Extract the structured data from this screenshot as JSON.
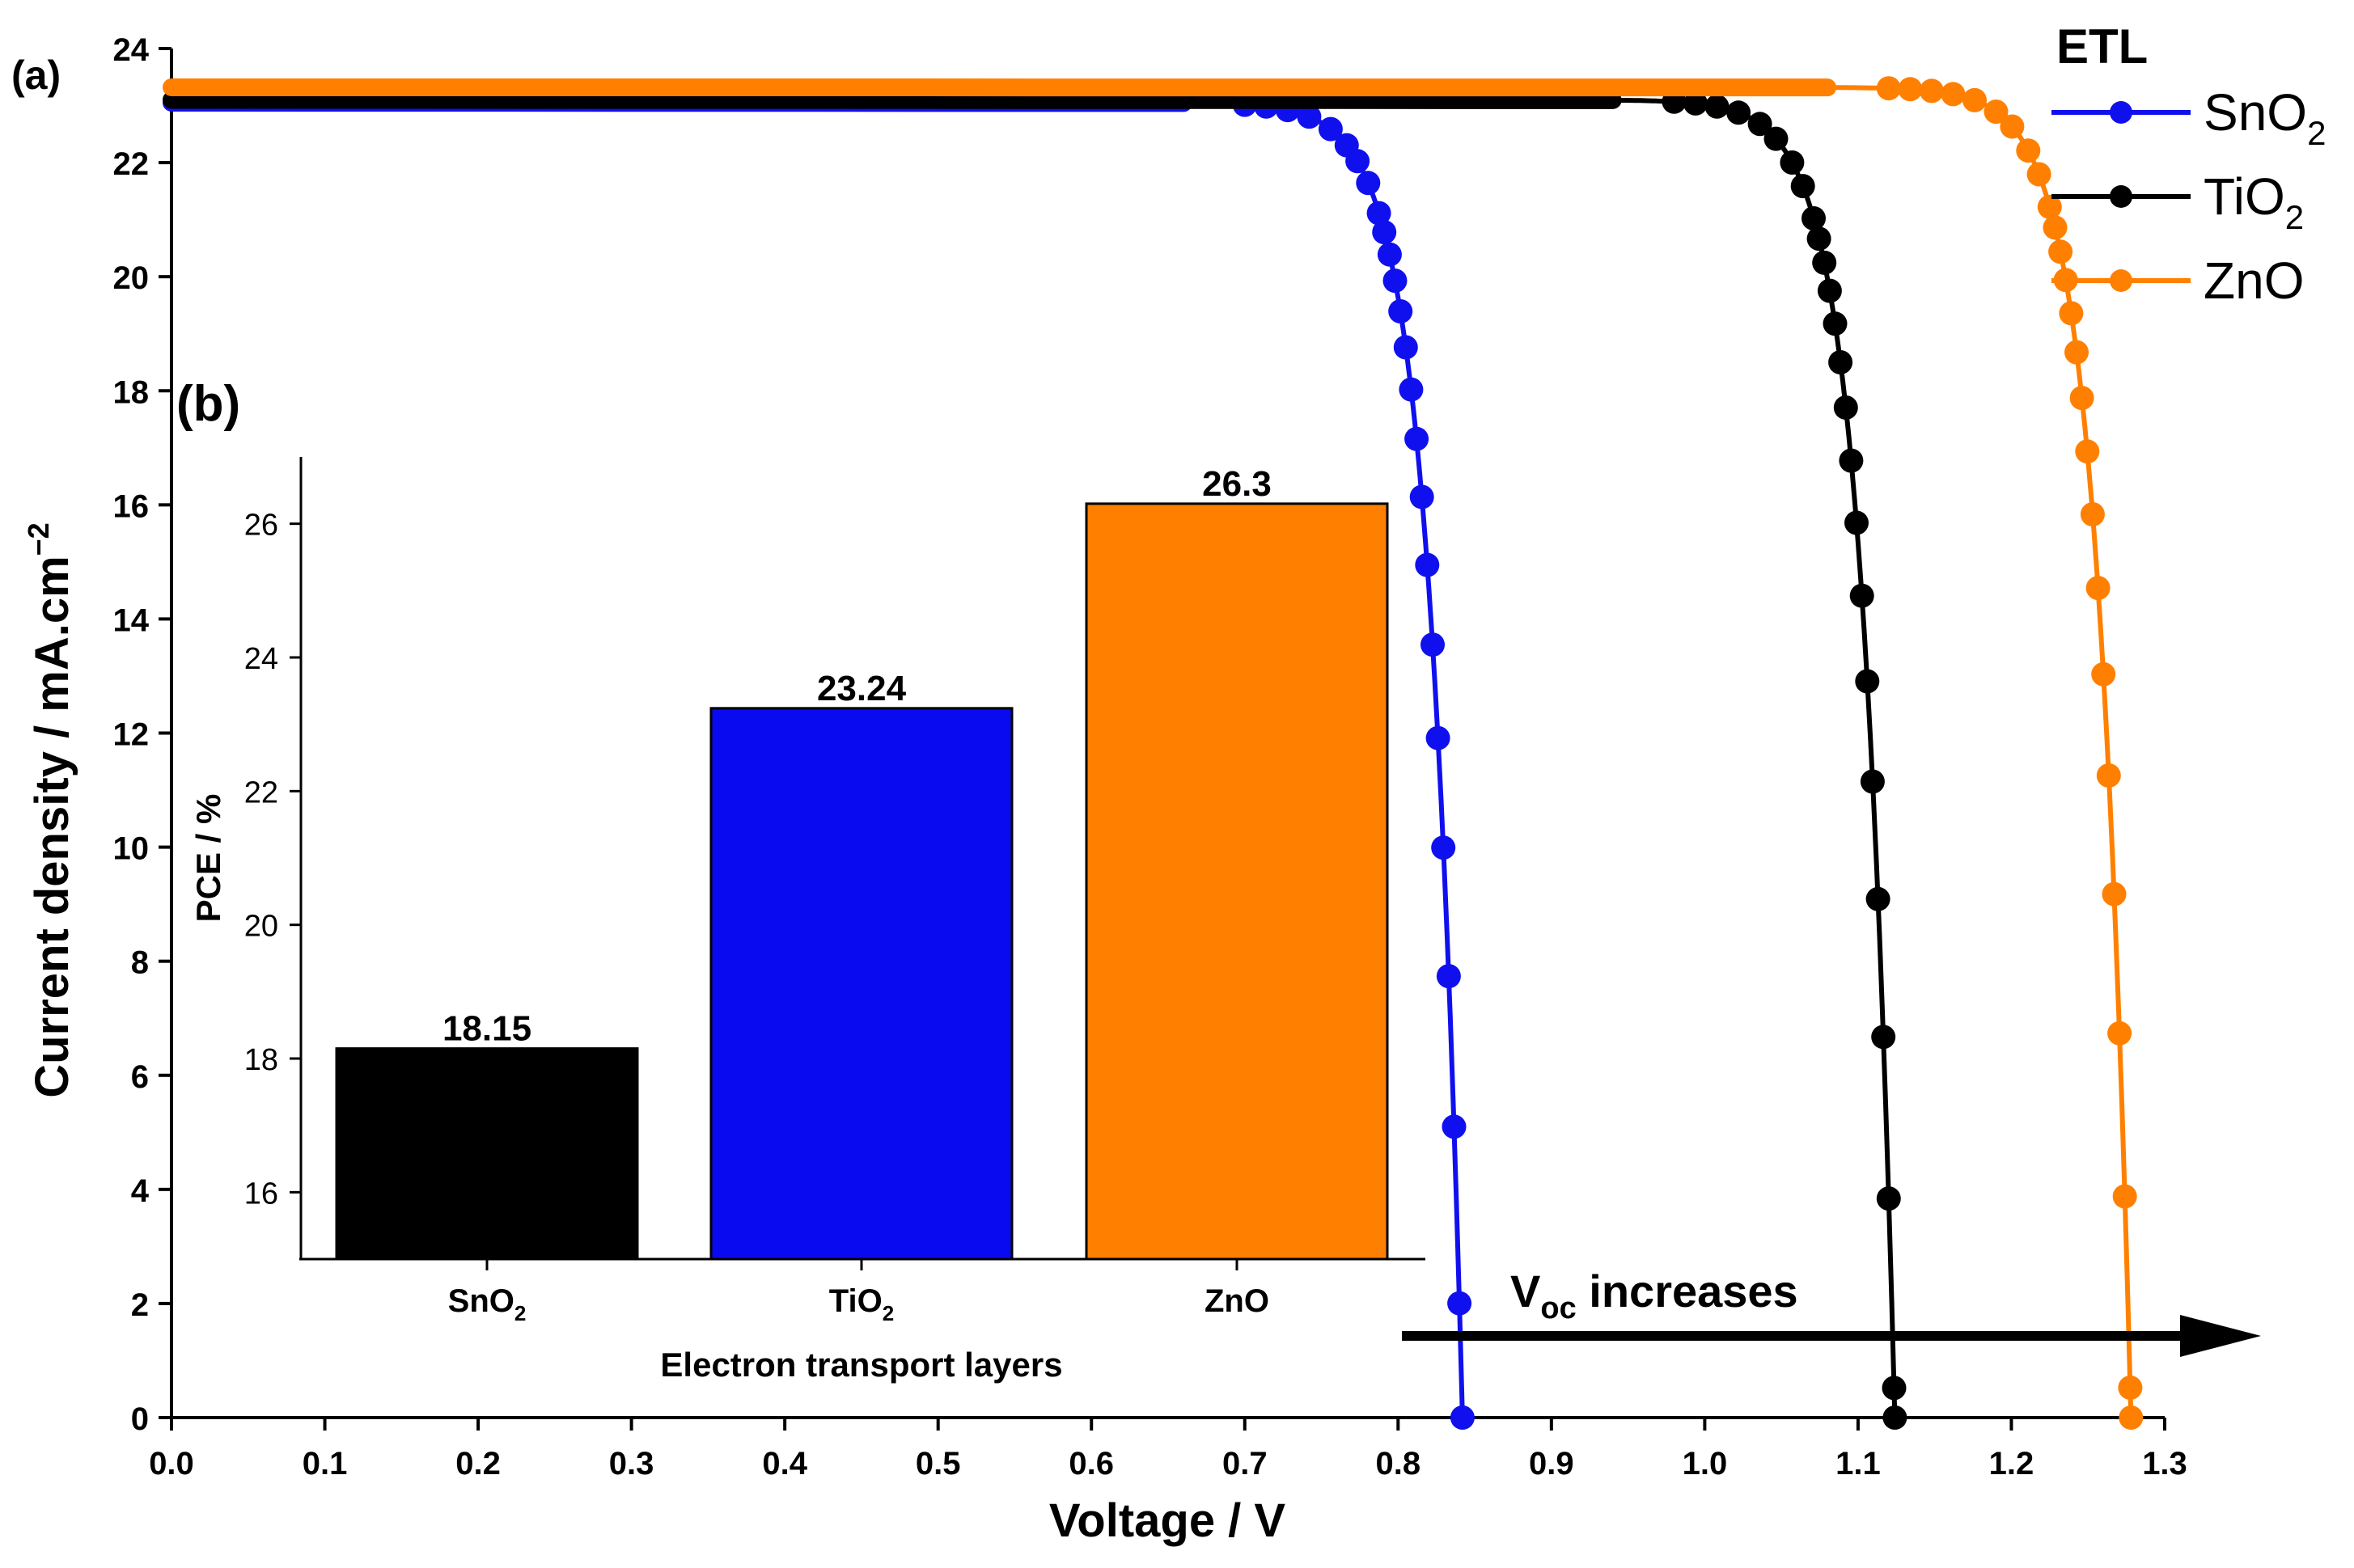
{
  "chart_data": [
    {
      "id": "a",
      "panel_label": "(a)",
      "type": "line",
      "xlabel": "Voltage / V",
      "ylabel_main": "Current density / mA.cm",
      "ylabel_sup": "−2",
      "xlim": [
        0,
        1.3
      ],
      "ylim": [
        0,
        24
      ],
      "xticks": [
        "0.0",
        "0.1",
        "0.2",
        "0.3",
        "0.4",
        "0.5",
        "0.6",
        "0.7",
        "0.8",
        "0.9",
        "1.0",
        "1.1",
        "1.2",
        "1.3"
      ],
      "yticks": [
        "0",
        "2",
        "4",
        "6",
        "8",
        "10",
        "12",
        "14",
        "16",
        "18",
        "20",
        "22",
        "24"
      ],
      "legend_title": "ETL",
      "series": [
        {
          "name_base": "SnO",
          "name_sub": "2",
          "color": "#1010ee",
          "jsc": 23.05,
          "voc": 0.842,
          "knee": 0.7
        },
        {
          "name_base": "TiO",
          "name_sub": "2",
          "color": "#000000",
          "jsc": 23.1,
          "voc": 1.124,
          "knee": 0.98
        },
        {
          "name_base": "ZnO",
          "name_sub": "",
          "color": "#ff8000",
          "jsc": 23.32,
          "voc": 1.278,
          "knee": 1.12
        }
      ],
      "annotation": {
        "base": "V",
        "sub": "oc",
        "text": " increases"
      }
    },
    {
      "id": "b",
      "panel_label": "(b)",
      "type": "bar",
      "xlabel": "Electron transport layers",
      "ylabel": "PCE / %",
      "ylim": [
        15,
        27
      ],
      "yticks": [
        "16",
        "18",
        "20",
        "22",
        "24",
        "26"
      ],
      "categories": [
        {
          "base": "SnO",
          "sub": "2"
        },
        {
          "base": "TiO",
          "sub": "2"
        },
        {
          "base": "ZnO",
          "sub": ""
        }
      ],
      "values": [
        18.15,
        23.24,
        26.3
      ],
      "value_labels": [
        "18.15",
        "23.24",
        "26.3"
      ],
      "colors": [
        "#000000",
        "#0a0af0",
        "#ff8000"
      ]
    }
  ]
}
